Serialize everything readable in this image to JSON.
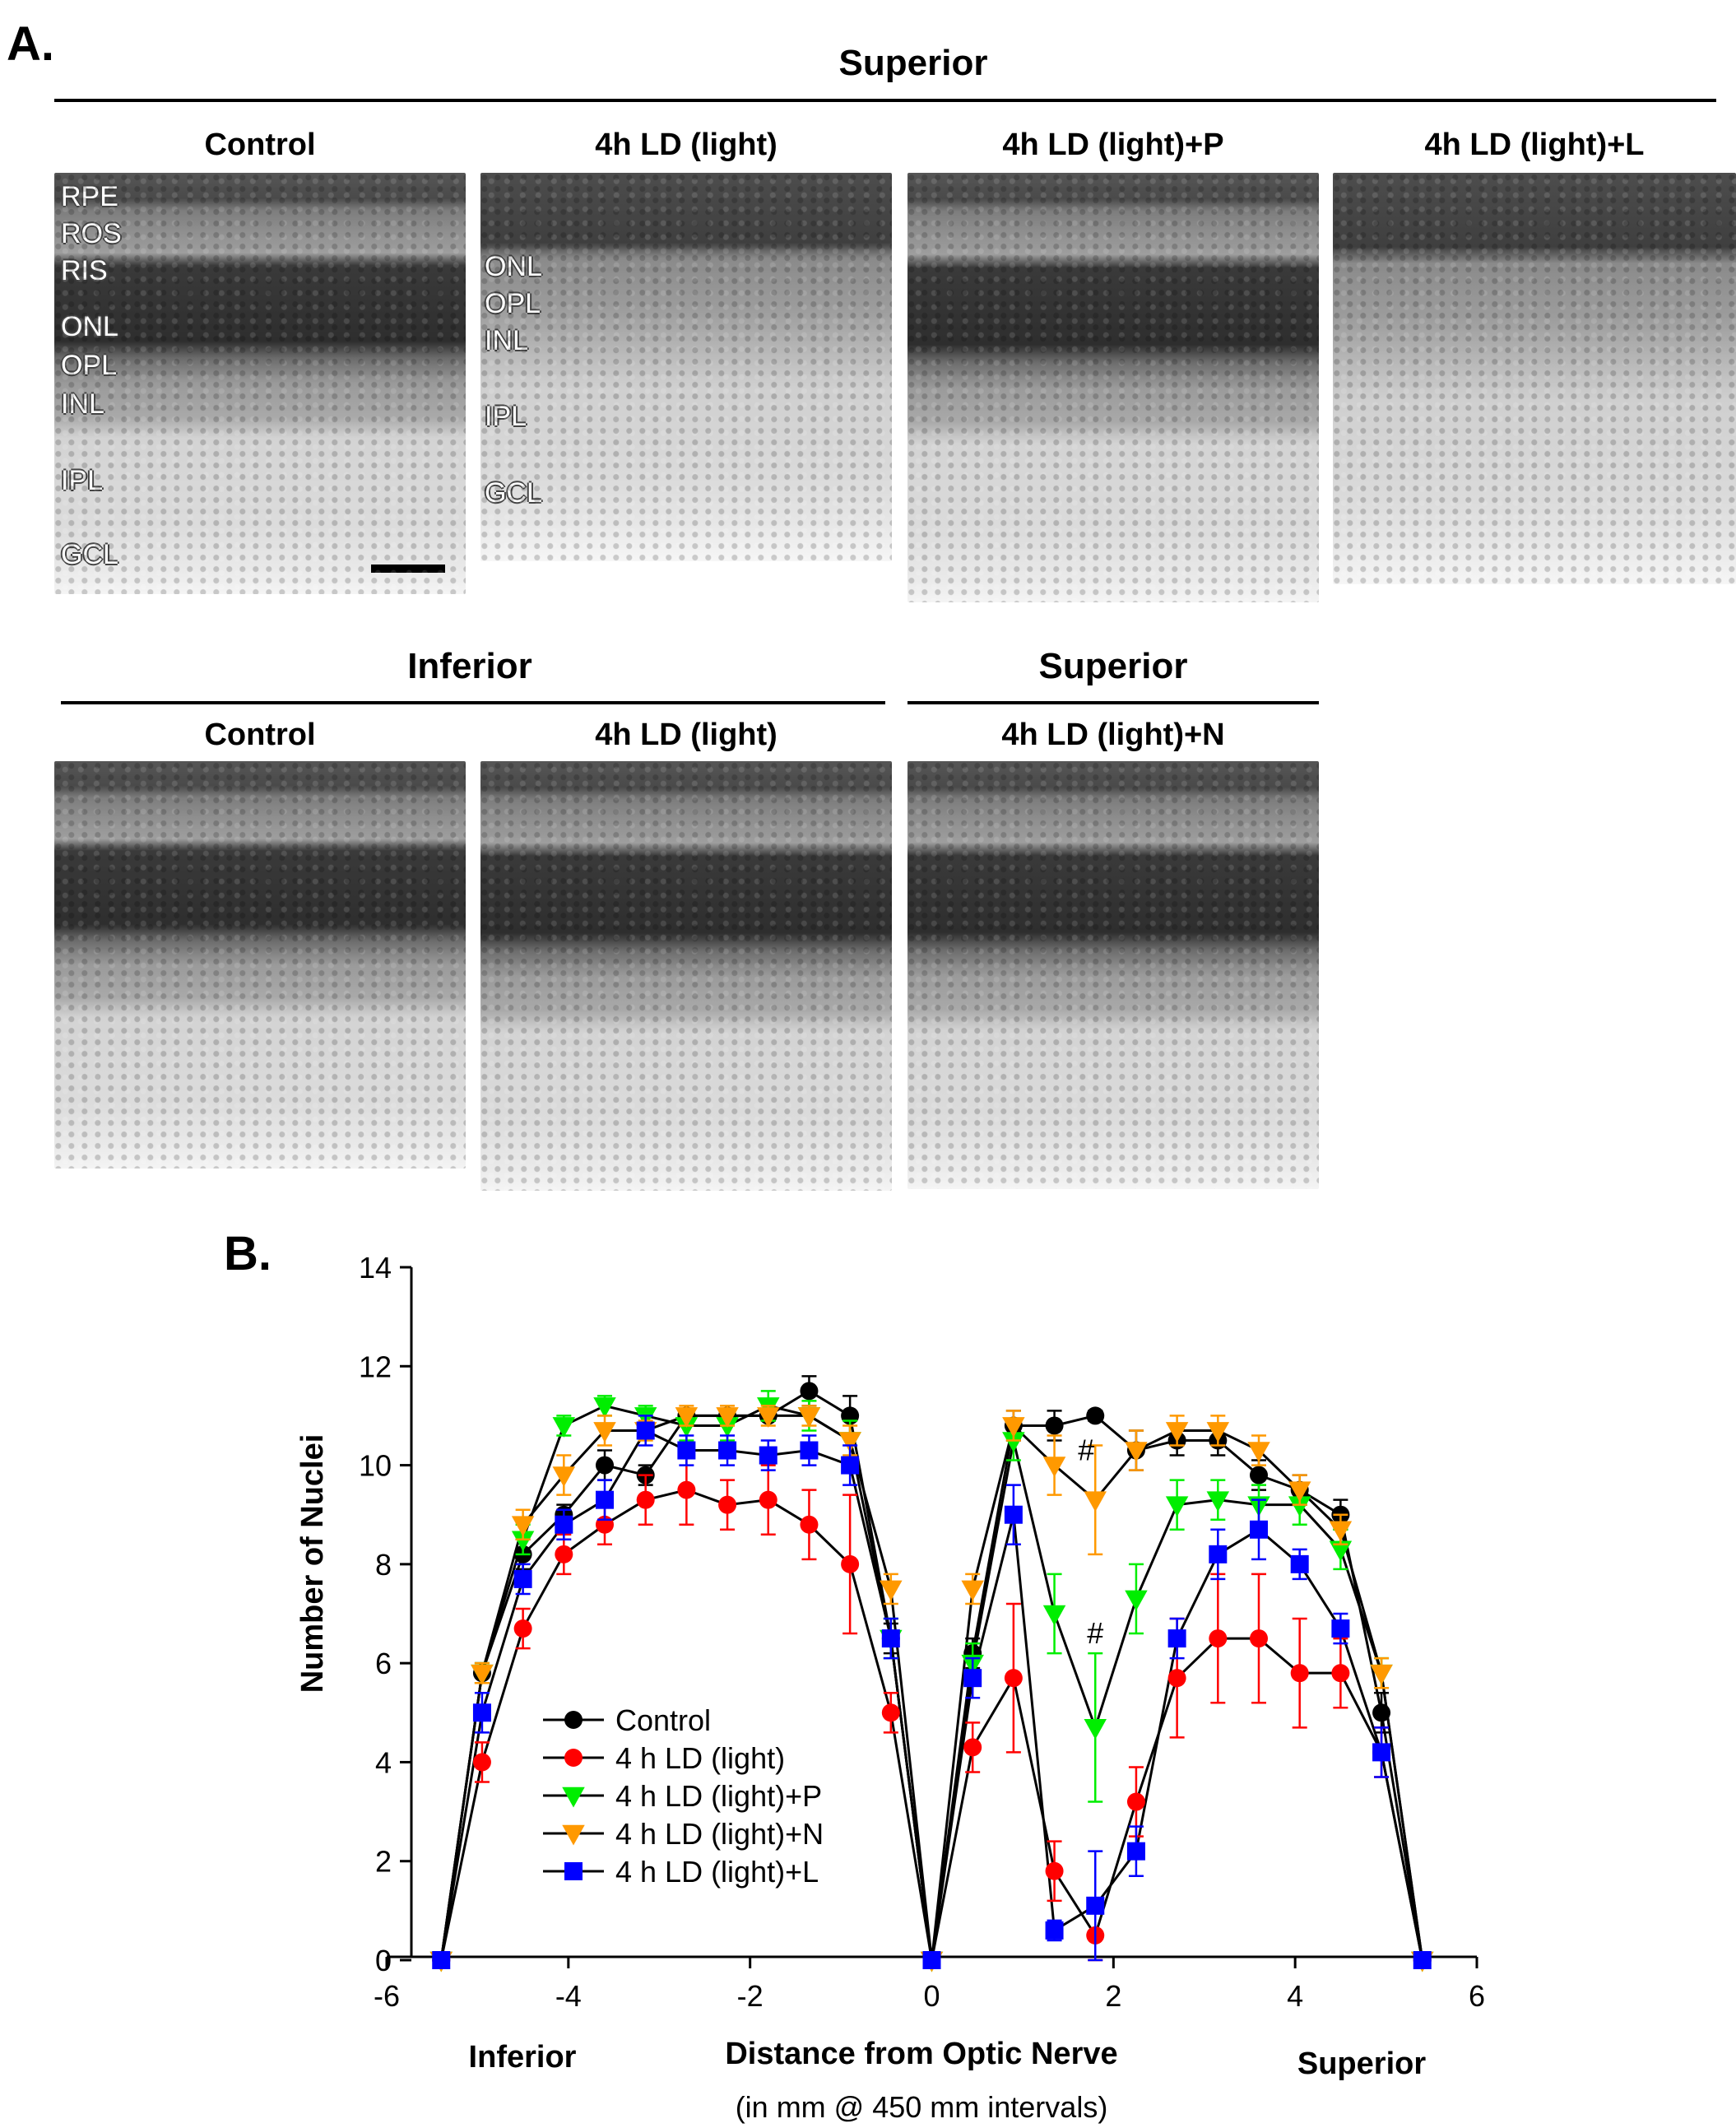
{
  "panel_a": {
    "letter": "A.",
    "top_section_title": "Superior",
    "top_images": [
      {
        "label": "Control",
        "layers": [
          "RPE",
          "ROS",
          "RIS",
          "ONL",
          "OPL",
          "INL",
          "IPL",
          "GCL"
        ]
      },
      {
        "label": "4h LD (light)",
        "layers": [
          "ONL",
          "OPL",
          "INL",
          "IPL",
          "GCL"
        ]
      },
      {
        "label": "4h LD (light)+P"
      },
      {
        "label": "4h LD (light)+L"
      }
    ],
    "bottom_left_title": "Inferior",
    "bottom_right_title": "Superior",
    "bottom_images": [
      {
        "label": "Control"
      },
      {
        "label": "4h LD (light)"
      },
      {
        "label": "4h LD (light)+N"
      }
    ]
  },
  "panel_b": {
    "letter": "B.",
    "xlabel": "Distance from Optic Nerve",
    "xlabel_sub": "(in mm @ 450 mm intervals)",
    "left_region": "Inferior",
    "right_region": "Superior",
    "hash_mark": "#"
  },
  "chart_data": {
    "type": "line",
    "ylabel": "Number of Nuclei",
    "xlim": [
      -6,
      6
    ],
    "ylim": [
      0,
      14
    ],
    "xticks": [
      -6,
      -4,
      -2,
      0,
      2,
      4,
      6
    ],
    "yticks": [
      0,
      2,
      4,
      6,
      8,
      10,
      12,
      14
    ],
    "legend_position": "lower-left",
    "x": [
      -5.4,
      -4.95,
      -4.5,
      -4.05,
      -3.6,
      -3.15,
      -2.7,
      -2.25,
      -1.8,
      -1.35,
      -0.9,
      -0.45,
      0,
      0.45,
      0.9,
      1.35,
      1.8,
      2.25,
      2.7,
      3.15,
      3.6,
      4.05,
      4.5,
      4.95,
      5.4
    ],
    "series": [
      {
        "name": "Control",
        "marker": "circle",
        "color": "#000000",
        "values": [
          0,
          5.8,
          8.2,
          9.0,
          10.0,
          9.8,
          11.0,
          11.0,
          11.0,
          11.5,
          11.0,
          6.5,
          0,
          6.2,
          10.8,
          10.8,
          11.0,
          10.3,
          10.5,
          10.5,
          9.8,
          9.5,
          9.0,
          5.0,
          0
        ],
        "errors": [
          0,
          0.2,
          0.3,
          0.2,
          0.3,
          0.2,
          0.1,
          0.1,
          0.1,
          0.3,
          0.4,
          0.3,
          0,
          0.3,
          0.3,
          0.3,
          0.1,
          0.4,
          0.3,
          0.3,
          0.3,
          0.3,
          0.3,
          0.4,
          0
        ]
      },
      {
        "name": "4 h LD (light)",
        "marker": "circle",
        "color": "#ff0000",
        "values": [
          0,
          4.0,
          6.7,
          8.2,
          8.8,
          9.3,
          9.5,
          9.2,
          9.3,
          8.8,
          8.0,
          5.0,
          0,
          4.3,
          5.7,
          1.8,
          0.5,
          3.2,
          5.7,
          6.5,
          6.5,
          5.8,
          5.8,
          4.2,
          0
        ],
        "errors": [
          0,
          0.4,
          0.4,
          0.4,
          0.4,
          0.5,
          0.7,
          0.5,
          0.7,
          0.7,
          1.4,
          0.4,
          0,
          0.5,
          1.5,
          0.6,
          0.5,
          0.7,
          1.2,
          1.3,
          1.3,
          1.1,
          0.7,
          0.5,
          0
        ]
      },
      {
        "name": "4 h LD (light)+P",
        "marker": "triangle-down",
        "color": "#00ee00",
        "values": [
          0,
          5.8,
          8.5,
          10.8,
          11.2,
          11.0,
          10.8,
          10.8,
          11.2,
          11.0,
          10.5,
          6.5,
          0,
          6.0,
          10.5,
          7.0,
          4.7,
          7.3,
          9.2,
          9.3,
          9.2,
          9.2,
          8.3,
          5.8,
          0
        ],
        "errors": [
          0,
          0.2,
          0.3,
          0.2,
          0.2,
          0.2,
          0.3,
          0.3,
          0.3,
          0.3,
          0.4,
          0.4,
          0,
          0.4,
          0.4,
          0.8,
          1.5,
          0.7,
          0.5,
          0.4,
          0.4,
          0.4,
          0.4,
          0.3,
          0
        ]
      },
      {
        "name": "4 h LD (light)+N",
        "marker": "triangle-down",
        "color": "#ff9900",
        "values": [
          0,
          5.8,
          8.8,
          9.8,
          10.7,
          10.7,
          11.0,
          11.0,
          11.0,
          11.0,
          10.5,
          7.5,
          0,
          7.5,
          10.8,
          10.0,
          9.3,
          10.3,
          10.7,
          10.7,
          10.3,
          9.5,
          8.7,
          5.8,
          0
        ],
        "errors": [
          0,
          0.2,
          0.3,
          0.4,
          0.3,
          0.2,
          0.2,
          0.2,
          0.2,
          0.2,
          0.3,
          0.3,
          0,
          0.3,
          0.3,
          0.6,
          1.1,
          0.4,
          0.3,
          0.3,
          0.3,
          0.3,
          0.3,
          0.3,
          0
        ]
      },
      {
        "name": "4 h LD (light)+L",
        "marker": "square",
        "color": "#0000ff",
        "values": [
          0,
          5.0,
          7.7,
          8.8,
          9.3,
          10.7,
          10.3,
          10.3,
          10.2,
          10.3,
          10.0,
          6.5,
          0,
          5.7,
          9.0,
          0.6,
          1.1,
          2.2,
          6.5,
          8.2,
          8.7,
          8.0,
          6.7,
          4.2,
          0
        ],
        "errors": [
          0,
          0.4,
          0.3,
          0.3,
          0.4,
          0.3,
          0.3,
          0.3,
          0.3,
          0.3,
          0.4,
          0.4,
          0,
          0.4,
          0.6,
          0.2,
          1.1,
          0.5,
          0.4,
          0.5,
          0.6,
          0.3,
          0.3,
          0.5,
          0
        ]
      }
    ],
    "annotations": [
      {
        "text": "#",
        "x": 1.7,
        "y": 10.3
      },
      {
        "text": "#",
        "x": 1.8,
        "y": 6.6
      }
    ]
  }
}
